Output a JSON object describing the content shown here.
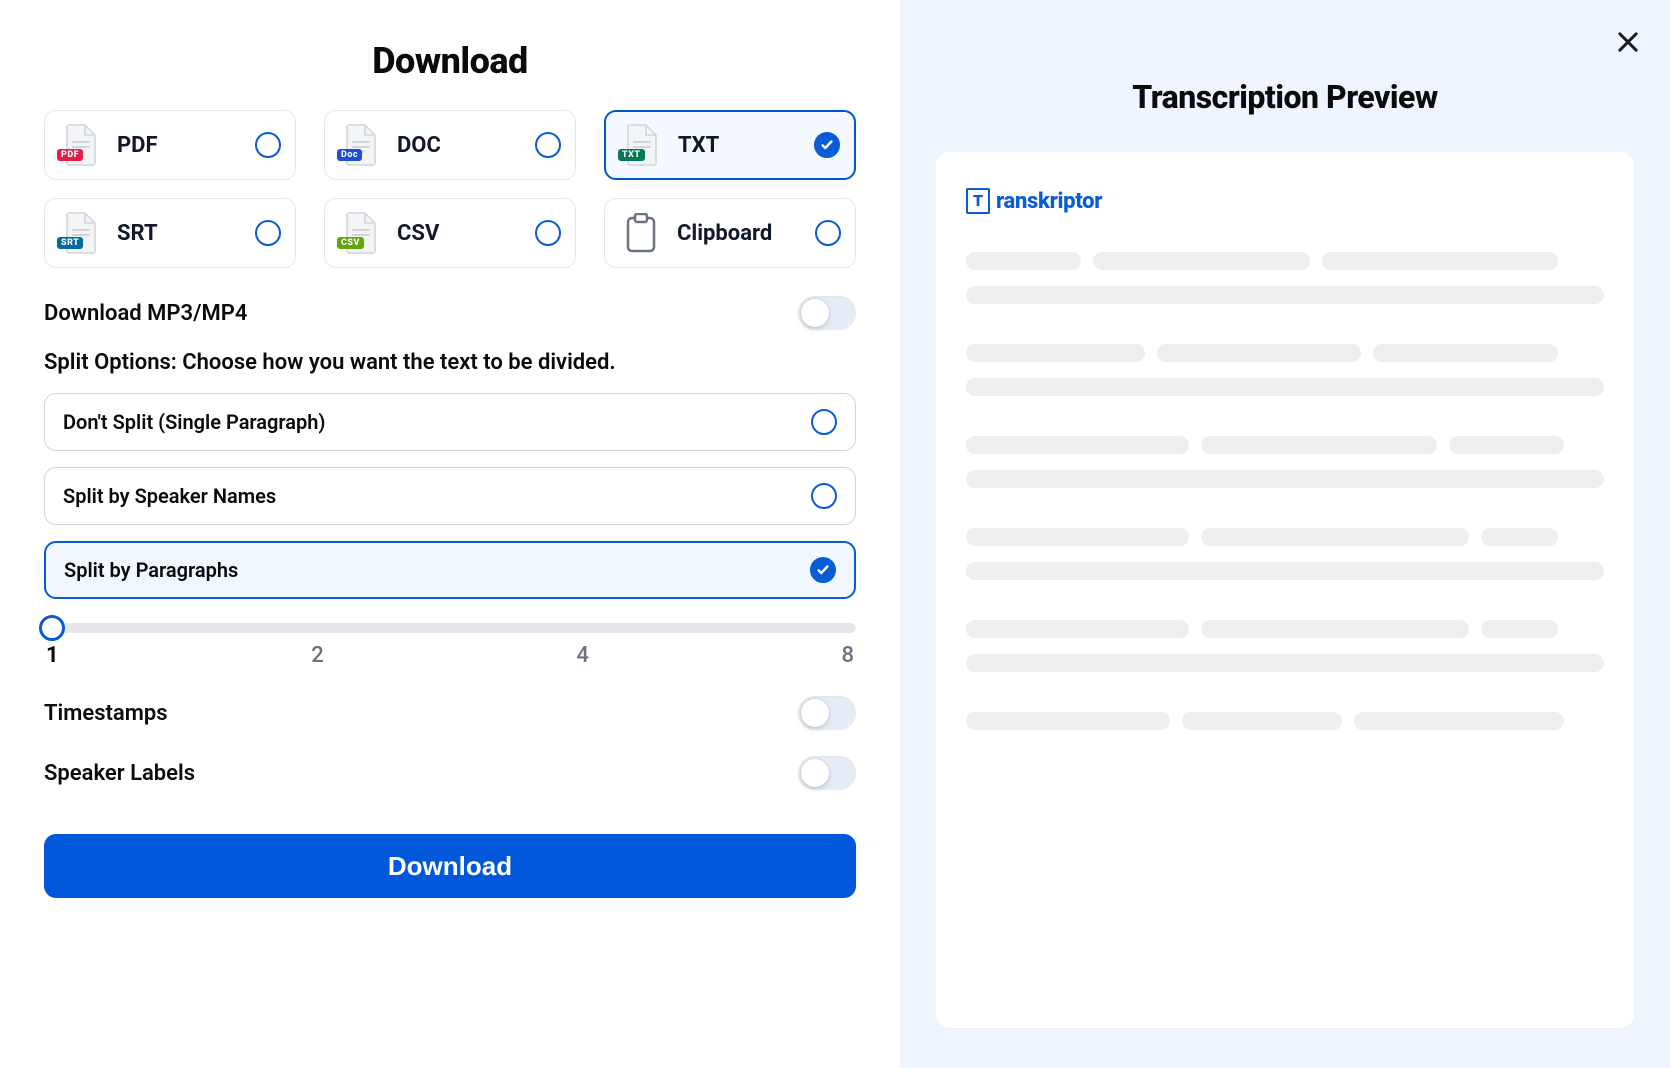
{
  "left": {
    "title": "Download",
    "formats": [
      {
        "key": "pdf",
        "label": "PDF",
        "badge": "PDF",
        "badge_color": "#e11d48",
        "selected": false
      },
      {
        "key": "doc",
        "label": "DOC",
        "badge": "Doc",
        "badge_color": "#1d4ed8",
        "selected": false
      },
      {
        "key": "txt",
        "label": "TXT",
        "badge": "TXT",
        "badge_color": "#047857",
        "selected": true
      },
      {
        "key": "srt",
        "label": "SRT",
        "badge": "SRT",
        "badge_color": "#0369a1",
        "selected": false
      },
      {
        "key": "csv",
        "label": "CSV",
        "badge": "CSV",
        "badge_color": "#65a30d",
        "selected": false
      },
      {
        "key": "clipboard",
        "label": "Clipboard",
        "badge": null,
        "badge_color": null,
        "selected": false
      }
    ],
    "mp3_toggle_label": "Download MP3/MP4",
    "mp3_toggle_on": false,
    "split_section_label": "Split Options: Choose how you want the text to be divided.",
    "split_options": [
      {
        "key": "none",
        "label": "Don't Split (Single Paragraph)",
        "selected": false
      },
      {
        "key": "speaker",
        "label": "Split by Speaker Names",
        "selected": false
      },
      {
        "key": "paragraph",
        "label": "Split by Paragraphs",
        "selected": true
      }
    ],
    "slider": {
      "value": 1,
      "ticks": [
        "1",
        "2",
        "4",
        "8"
      ]
    },
    "timestamps_label": "Timestamps",
    "timestamps_on": false,
    "speaker_labels_label": "Speaker Labels",
    "speaker_labels_on": false,
    "download_button": "Download"
  },
  "right": {
    "title": "Transcription Preview",
    "logo_text": "ranskriptor",
    "accent_color": "#0a5bd6",
    "skeleton_groups": [
      [
        [
          18,
          34,
          37
        ],
        [
          100
        ]
      ],
      [
        [
          28,
          32,
          29
        ],
        [
          100
        ]
      ],
      [
        [
          35,
          37,
          18
        ],
        [
          100
        ]
      ],
      [
        [
          35,
          42,
          12
        ],
        [
          100
        ]
      ],
      [
        [
          35,
          42,
          12
        ],
        [
          100
        ]
      ],
      [
        [
          32,
          25,
          33
        ]
      ]
    ]
  },
  "colors": {
    "primary": "#0057d9",
    "border": "#e5e7eb",
    "right_bg": "#eff5ff",
    "skeleton": "#edeef0"
  }
}
